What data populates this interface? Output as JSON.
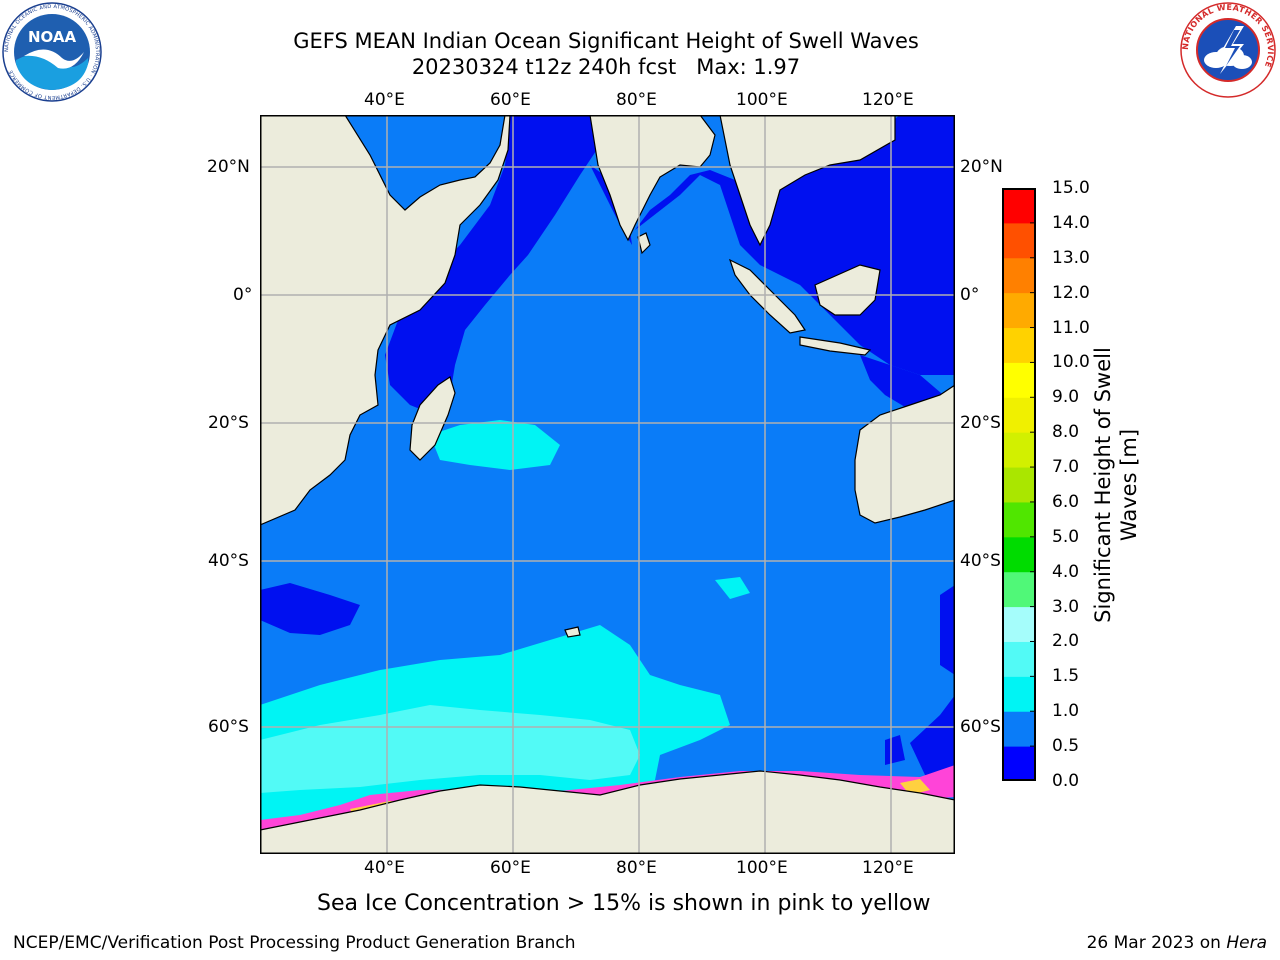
{
  "header": {
    "title_line1": "GEFS MEAN Indian Ocean Significant Height of Swell Waves",
    "title_line2": "20230324 t12z 240h fcst   Max: 1.97"
  },
  "map": {
    "lon_ticks": [
      "40°E",
      "60°E",
      "80°E",
      "100°E",
      "120°E"
    ],
    "lat_ticks": [
      "20°N",
      "0°",
      "20°S",
      "40°S",
      "60°S"
    ],
    "colors": {
      "ocean_base": "#0a7cf8",
      "swell_low": "#0010f0",
      "swell_mid": "#00f4f4",
      "swell_upper": "#52faf6",
      "land": "#ececdc",
      "sea_ice_pink": "#ff44d8",
      "sea_ice_yellow": "#ffd040",
      "grid": "#b0b0b0"
    }
  },
  "colorbar": {
    "label": "Significant Height of Swell Waves [m]",
    "ticks": [
      "0.0",
      "0.5",
      "1.0",
      "1.5",
      "2.0",
      "3.0",
      "4.0",
      "5.0",
      "6.0",
      "7.0",
      "8.0",
      "9.0",
      "10.0",
      "11.0",
      "12.0",
      "13.0",
      "14.0",
      "15.0"
    ],
    "colors": [
      "#0000ff",
      "#0a7cf8",
      "#00f4f4",
      "#52faf6",
      "#a5fdfb",
      "#50f878",
      "#00dc00",
      "#50e600",
      "#aae600",
      "#d2f000",
      "#f0f000",
      "#ffff00",
      "#ffd200",
      "#ffaa00",
      "#ff8000",
      "#ff5000",
      "#ff0000"
    ]
  },
  "caption": "Sea Ice Concentration > 15% is shown in pink to yellow",
  "footer": {
    "left": "NCEP/EMC/Verification Post Processing Product Generation Branch",
    "right_prefix": "26 Mar 2023 on ",
    "right_host": "Hera"
  },
  "logos": {
    "noaa": "NOAA",
    "noaa_ring": "NATIONAL OCEANIC AND ATMOSPHERIC ADMINISTRATION · U.S. DEPARTMENT OF COMMERCE",
    "nws_ring": "NATIONAL WEATHER SERVICE"
  }
}
